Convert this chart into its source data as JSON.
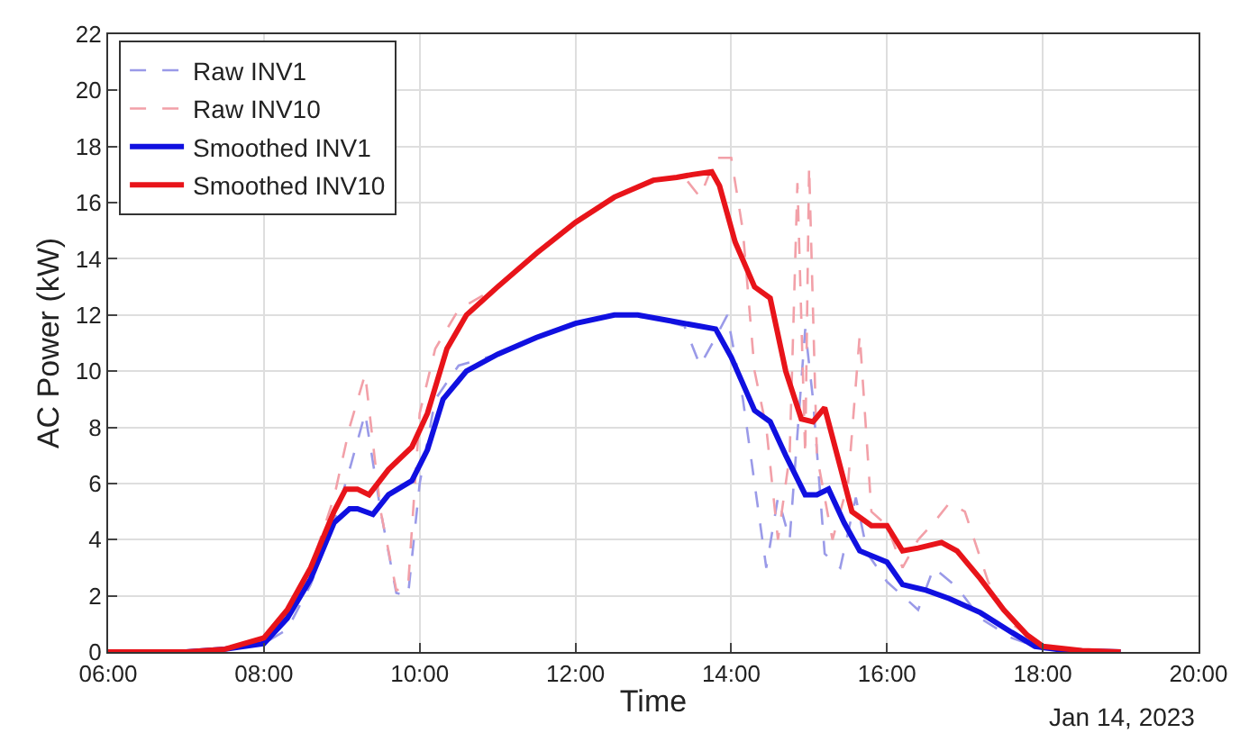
{
  "chart_data": {
    "type": "line",
    "xlabel": "Time",
    "ylabel": "AC Power (kW)",
    "annotations": [
      "Jan 14, 2023"
    ],
    "xlim": [
      6,
      20
    ],
    "xticks": [
      {
        "value": 6,
        "label": "06:00"
      },
      {
        "value": 8,
        "label": "08:00"
      },
      {
        "value": 10,
        "label": "10:00"
      },
      {
        "value": 12,
        "label": "12:00"
      },
      {
        "value": 14,
        "label": "14:00"
      },
      {
        "value": 16,
        "label": "16:00"
      },
      {
        "value": 18,
        "label": "18:00"
      },
      {
        "value": 20,
        "label": "20:00"
      }
    ],
    "ylim": [
      0,
      22
    ],
    "yticks": [
      0,
      2,
      4,
      6,
      8,
      10,
      12,
      14,
      16,
      18,
      20,
      22
    ],
    "grid": true,
    "legend": "top left",
    "marker": "none",
    "series": [
      {
        "name": "Raw INV1",
        "color": "#9a9ae8",
        "line_style": "dashed",
        "x": [
          6,
          7,
          7.5,
          8.0,
          8.3,
          8.6,
          8.9,
          9.1,
          9.3,
          9.5,
          9.7,
          9.85,
          10.0,
          10.2,
          10.5,
          11,
          11.5,
          12,
          12.5,
          13,
          13.4,
          13.6,
          13.8,
          13.95,
          14.15,
          14.3,
          14.45,
          14.6,
          14.75,
          14.95,
          15.05,
          15.2,
          15.4,
          15.6,
          15.75,
          16.0,
          16.2,
          16.4,
          16.6,
          16.9,
          17.2,
          17.6,
          18.0,
          18.5,
          19
        ],
        "values": [
          0,
          0,
          0.1,
          0.3,
          0.8,
          2.4,
          4.6,
          6.5,
          8.5,
          5,
          2.1,
          2.0,
          6,
          9,
          10.2,
          10.6,
          11.2,
          11.7,
          12,
          11.9,
          11.6,
          10.2,
          11.2,
          12,
          9,
          6,
          3,
          5.5,
          4,
          11.5,
          9,
          3.5,
          3,
          5.5,
          3.5,
          2.5,
          2,
          1.5,
          3,
          2.3,
          1.2,
          0.5,
          0.1,
          0.05,
          0
        ]
      },
      {
        "name": "Raw INV10",
        "color": "#f2a0a8",
        "line_style": "dashed",
        "x": [
          6,
          7,
          7.5,
          8.0,
          8.3,
          8.6,
          8.9,
          9.1,
          9.3,
          9.5,
          9.7,
          9.85,
          10.0,
          10.2,
          10.5,
          11,
          11.5,
          12,
          12.5,
          13,
          13.4,
          13.6,
          13.8,
          14.0,
          14.15,
          14.3,
          14.45,
          14.6,
          14.75,
          14.85,
          14.95,
          15.0,
          15.1,
          15.3,
          15.5,
          15.65,
          15.8,
          16.0,
          16.2,
          16.4,
          16.6,
          16.8,
          17.0,
          17.3,
          17.6,
          18.0,
          18.5,
          19
        ],
        "values": [
          0,
          0,
          0.1,
          0.5,
          1.5,
          3,
          5.5,
          8,
          9.9,
          5,
          2.2,
          2.3,
          8.5,
          10.8,
          12.2,
          13,
          14.2,
          15.3,
          16.2,
          16.8,
          16.9,
          16.2,
          17.6,
          17.6,
          15,
          10,
          8,
          4,
          7,
          16.7,
          7,
          17.3,
          7,
          4,
          6,
          11.3,
          5,
          4.5,
          3,
          4,
          4.6,
          5.3,
          5,
          2.5,
          1,
          0.2,
          0.05,
          0
        ]
      },
      {
        "name": "Smoothed INV1",
        "color": "#1010e0",
        "line_style": "solid",
        "x": [
          6,
          7,
          7.5,
          8.0,
          8.3,
          8.6,
          8.9,
          9.1,
          9.2,
          9.4,
          9.6,
          9.9,
          10.1,
          10.3,
          10.6,
          11,
          11.5,
          12,
          12.5,
          12.8,
          13.2,
          13.6,
          13.8,
          14.0,
          14.3,
          14.5,
          14.7,
          14.95,
          15.1,
          15.25,
          15.45,
          15.65,
          16,
          16.2,
          16.5,
          16.8,
          17.2,
          17.6,
          17.9,
          18.3,
          19
        ],
        "values": [
          0,
          0,
          0.1,
          0.3,
          1.2,
          2.6,
          4.6,
          5.1,
          5.1,
          4.9,
          5.6,
          6.1,
          7.2,
          9.0,
          10.0,
          10.6,
          11.2,
          11.7,
          12,
          12,
          11.8,
          11.6,
          11.5,
          10.5,
          8.6,
          8.2,
          7.0,
          5.6,
          5.6,
          5.8,
          4.6,
          3.6,
          3.2,
          2.4,
          2.2,
          1.9,
          1.4,
          0.7,
          0.2,
          0.05,
          0
        ]
      },
      {
        "name": "Smoothed INV10",
        "color": "#e8141a",
        "line_style": "solid",
        "x": [
          6,
          7,
          7.5,
          8.0,
          8.3,
          8.6,
          8.9,
          9.05,
          9.2,
          9.35,
          9.6,
          9.9,
          10.1,
          10.35,
          10.6,
          11,
          11.5,
          12,
          12.5,
          13,
          13.3,
          13.5,
          13.75,
          13.85,
          14.05,
          14.3,
          14.5,
          14.7,
          14.9,
          15.05,
          15.2,
          15.4,
          15.55,
          15.8,
          16.0,
          16.2,
          16.4,
          16.7,
          16.9,
          17.2,
          17.5,
          17.8,
          18.0,
          18.5,
          19
        ],
        "values": [
          0,
          0,
          0.1,
          0.5,
          1.5,
          3,
          5,
          5.8,
          5.8,
          5.6,
          6.5,
          7.3,
          8.5,
          10.8,
          12,
          13,
          14.2,
          15.3,
          16.2,
          16.8,
          16.9,
          17,
          17.1,
          16.6,
          14.6,
          13,
          12.6,
          10,
          8.3,
          8.2,
          8.7,
          6.6,
          5,
          4.5,
          4.5,
          3.6,
          3.7,
          3.9,
          3.6,
          2.6,
          1.5,
          0.6,
          0.2,
          0.05,
          0
        ]
      }
    ]
  }
}
